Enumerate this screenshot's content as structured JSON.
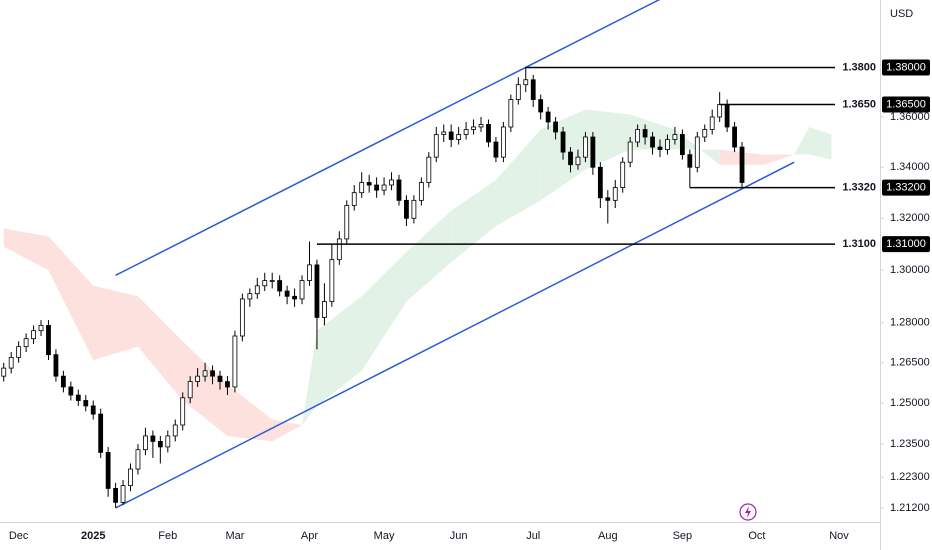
{
  "chart_data": {
    "type": "candlestick",
    "currency_label": "USD",
    "categories": [
      null,
      null,
      "Dec",
      null,
      null,
      null,
      null,
      null,
      null,
      null,
      null,
      null,
      "2025",
      null,
      null,
      null,
      null,
      null,
      null,
      null,
      null,
      null,
      "Feb",
      null,
      null,
      null,
      null,
      null,
      null,
      null,
      null,
      "Mar",
      null,
      null,
      null,
      null,
      null,
      null,
      null,
      null,
      null,
      "Apr",
      null,
      null,
      null,
      null,
      null,
      null,
      null,
      null,
      null,
      "May",
      null,
      null,
      null,
      null,
      null,
      null,
      null,
      null,
      null,
      "Jun",
      null,
      null,
      null,
      null,
      null,
      null,
      null,
      null,
      null,
      "Jul",
      null,
      null,
      null,
      null,
      null,
      null,
      null,
      null,
      null,
      "Aug",
      null,
      null,
      null,
      null,
      null,
      null,
      null,
      null,
      null,
      "Sep",
      null,
      null,
      null,
      null,
      null,
      null,
      null,
      null,
      null,
      "Oct",
      null,
      null,
      null,
      null,
      null,
      null,
      null,
      null,
      null,
      null,
      "Nov",
      null,
      null,
      null,
      null,
      null
    ],
    "open": [
      1.26,
      1.263,
      1.267,
      1.271,
      1.274,
      1.277,
      1.279,
      1.268,
      1.26,
      1.256,
      1.253,
      1.251,
      1.249,
      1.246,
      1.232,
      1.219,
      1.214,
      1.22,
      1.226,
      1.233,
      1.238,
      1.236,
      1.234,
      1.238,
      1.242,
      1.252,
      1.258,
      1.26,
      1.262,
      1.26,
      1.258,
      1.256,
      1.275,
      1.289,
      1.291,
      1.294,
      1.296,
      1.296,
      1.292,
      1.29,
      1.289,
      1.296,
      1.302,
      1.282,
      1.288,
      1.304,
      1.312,
      1.325,
      1.33,
      1.334,
      1.333,
      1.331,
      1.333,
      1.335,
      1.327,
      1.32,
      1.327,
      1.334,
      1.344,
      1.353,
      1.354,
      1.351,
      1.353,
      1.355,
      1.356,
      1.357,
      1.35,
      1.344,
      1.356,
      1.367,
      1.373,
      1.375,
      1.367,
      1.362,
      1.358,
      1.354,
      1.346,
      1.341,
      1.344,
      1.352,
      1.34,
      1.328,
      1.327,
      1.332,
      1.342,
      1.35,
      1.355,
      1.352,
      1.348,
      1.347,
      1.351,
      1.353,
      1.345,
      1.34,
      1.352,
      1.355,
      1.36,
      1.365,
      1.356,
      1.348,
      null,
      null,
      null,
      null,
      null,
      null,
      null,
      null,
      null,
      null,
      null,
      null,
      null,
      null,
      null,
      null,
      null,
      null
    ],
    "high": [
      1.265,
      1.269,
      1.273,
      1.276,
      1.279,
      1.281,
      1.281,
      1.27,
      1.262,
      1.258,
      1.255,
      1.253,
      1.251,
      1.248,
      1.234,
      1.221,
      1.222,
      1.228,
      1.235,
      1.241,
      1.24,
      1.238,
      1.24,
      1.244,
      1.254,
      1.26,
      1.263,
      1.265,
      1.264,
      1.262,
      1.26,
      1.277,
      1.291,
      1.293,
      1.297,
      1.299,
      1.299,
      1.298,
      1.294,
      1.293,
      1.298,
      1.311,
      1.304,
      1.295,
      1.31,
      1.315,
      1.327,
      1.333,
      1.338,
      1.337,
      1.336,
      1.336,
      1.338,
      1.337,
      1.329,
      1.329,
      1.336,
      1.346,
      1.356,
      1.357,
      1.357,
      1.356,
      1.358,
      1.359,
      1.36,
      1.359,
      1.352,
      1.358,
      1.369,
      1.376,
      1.38,
      1.377,
      1.369,
      1.364,
      1.36,
      1.356,
      1.348,
      1.347,
      1.354,
      1.354,
      1.342,
      1.331,
      1.335,
      1.344,
      1.352,
      1.357,
      1.357,
      1.354,
      1.351,
      1.353,
      1.356,
      1.355,
      1.347,
      1.354,
      1.357,
      1.363,
      1.37,
      1.367,
      1.358,
      1.35,
      null,
      null,
      null,
      null,
      null,
      null,
      null,
      null,
      null,
      null,
      null,
      null,
      null,
      null,
      null,
      null,
      null,
      null
    ],
    "low": [
      1.258,
      1.261,
      1.265,
      1.269,
      1.272,
      1.275,
      1.266,
      1.258,
      1.254,
      1.251,
      1.249,
      1.247,
      1.244,
      1.23,
      1.216,
      1.212,
      1.213,
      1.218,
      1.224,
      1.231,
      1.23,
      1.228,
      1.232,
      1.236,
      1.24,
      1.25,
      1.256,
      1.258,
      1.257,
      1.255,
      1.253,
      1.254,
      1.273,
      1.286,
      1.289,
      1.292,
      1.293,
      1.29,
      1.287,
      1.286,
      1.287,
      1.294,
      1.27,
      1.279,
      1.286,
      1.302,
      1.31,
      1.323,
      1.328,
      1.33,
      1.328,
      1.329,
      1.331,
      1.325,
      1.317,
      1.318,
      1.325,
      1.332,
      1.342,
      1.35,
      1.348,
      1.349,
      1.351,
      1.353,
      1.354,
      1.348,
      1.342,
      1.342,
      1.354,
      1.365,
      1.37,
      1.364,
      1.359,
      1.355,
      1.351,
      1.343,
      1.338,
      1.339,
      1.342,
      1.337,
      1.324,
      1.318,
      1.324,
      1.33,
      1.34,
      1.348,
      1.349,
      1.345,
      1.344,
      1.345,
      1.349,
      1.343,
      1.332,
      1.338,
      1.35,
      1.353,
      1.358,
      1.354,
      1.346,
      1.332,
      null,
      null,
      null,
      null,
      null,
      null,
      null,
      null,
      null,
      null,
      null,
      null,
      null,
      null,
      null,
      null,
      null,
      null
    ],
    "close": [
      1.263,
      1.267,
      1.271,
      1.274,
      1.277,
      1.279,
      1.268,
      1.26,
      1.256,
      1.253,
      1.251,
      1.249,
      1.246,
      1.232,
      1.219,
      1.214,
      1.22,
      1.226,
      1.233,
      1.238,
      1.236,
      1.234,
      1.238,
      1.242,
      1.252,
      1.258,
      1.26,
      1.262,
      1.26,
      1.258,
      1.256,
      1.275,
      1.289,
      1.291,
      1.294,
      1.296,
      1.296,
      1.292,
      1.29,
      1.289,
      1.296,
      1.302,
      1.282,
      1.288,
      1.304,
      1.312,
      1.325,
      1.33,
      1.334,
      1.333,
      1.331,
      1.333,
      1.335,
      1.327,
      1.32,
      1.327,
      1.334,
      1.344,
      1.353,
      1.354,
      1.351,
      1.353,
      1.355,
      1.356,
      1.357,
      1.35,
      1.344,
      1.356,
      1.367,
      1.373,
      1.375,
      1.367,
      1.362,
      1.358,
      1.354,
      1.346,
      1.341,
      1.344,
      1.352,
      1.34,
      1.328,
      1.327,
      1.332,
      1.342,
      1.35,
      1.355,
      1.352,
      1.348,
      1.347,
      1.351,
      1.353,
      1.345,
      1.34,
      1.352,
      1.355,
      1.36,
      1.365,
      1.356,
      1.348,
      1.334,
      null,
      null,
      null,
      null,
      null,
      null,
      null,
      null,
      null,
      null,
      null,
      null,
      null,
      null,
      null,
      null,
      null,
      null
    ],
    "up_color": "#ffffff",
    "down_color": "#000000",
    "ylim": [
      1.207,
      1.4077
    ],
    "log_scale": true,
    "yticks": [
      {
        "value": 1.212,
        "label": "1.21200"
      },
      {
        "value": 1.223,
        "label": "1.22300"
      },
      {
        "value": 1.235,
        "label": "1.23500"
      },
      {
        "value": 1.25,
        "label": "1.25000"
      },
      {
        "value": 1.265,
        "label": "1.26500"
      },
      {
        "value": 1.28,
        "label": "1.28000"
      },
      {
        "value": 1.3,
        "label": "1.30000"
      },
      {
        "value": 1.32,
        "label": "1.32000"
      },
      {
        "value": 1.34,
        "label": "1.34000"
      },
      {
        "value": 1.36,
        "label": "1.36000"
      }
    ],
    "cloud": {
      "bull_color": "#e3f2e6",
      "bear_color": "#fce1df",
      "index": [
        0,
        6,
        12,
        18,
        24,
        30,
        36,
        40,
        42,
        48,
        54,
        60,
        66,
        72,
        78,
        84,
        90,
        96,
        102,
        106,
        108,
        111
      ],
      "span_a": [
        1.309,
        1.3,
        1.266,
        1.271,
        1.251,
        1.238,
        1.236,
        1.242,
        1.277,
        1.29,
        1.307,
        1.323,
        1.335,
        1.355,
        1.363,
        1.361,
        1.355,
        1.341,
        1.341,
        1.345,
        1.356,
        1.353
      ],
      "span_b": [
        1.316,
        1.313,
        1.294,
        1.29,
        1.273,
        1.257,
        1.244,
        1.242,
        1.249,
        1.262,
        1.288,
        1.303,
        1.317,
        1.327,
        1.339,
        1.347,
        1.347,
        1.347,
        1.345,
        1.345,
        1.345,
        1.343
      ]
    },
    "channel": {
      "color": "#2a5bd7",
      "lines": [
        {
          "points": [
            {
              "index": 15,
              "value": 1.298
            },
            {
              "index": 88,
              "value": 1.408
            }
          ]
        },
        {
          "points": [
            {
              "index": 15,
              "value": 1.212
            },
            {
              "index": 106,
              "value": 1.342
            }
          ]
        }
      ]
    },
    "levels": [
      {
        "value": 1.38,
        "label": "1.3800",
        "axis_label": "1.38000",
        "start_index": 70
      },
      {
        "value": 1.365,
        "label": "1.3650",
        "axis_label": "1.36500",
        "start_index": 96
      },
      {
        "value": 1.332,
        "label": "1.3320",
        "axis_label": "1.33200",
        "start_index": 92
      },
      {
        "value": 1.31,
        "label": "1.3100",
        "axis_label": "1.31000",
        "start_index": 42
      }
    ]
  }
}
